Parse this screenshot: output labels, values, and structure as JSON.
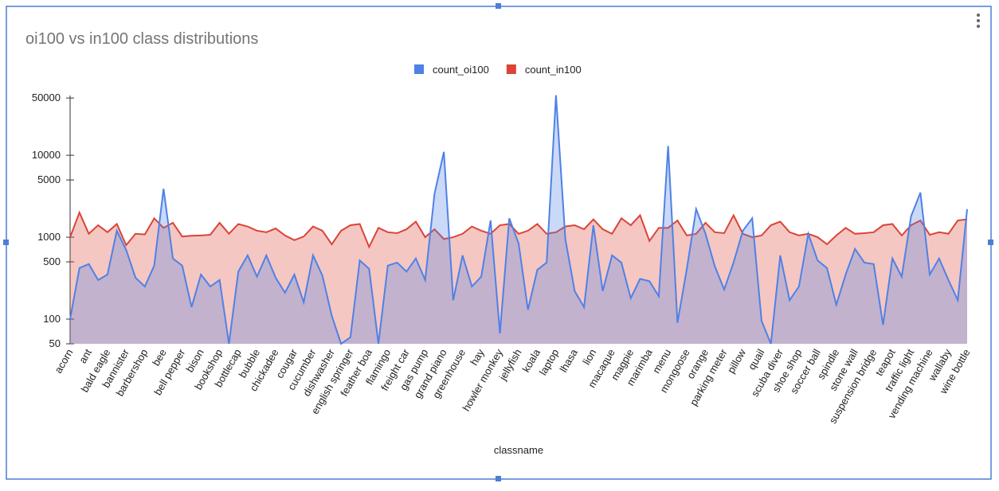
{
  "chart_data": {
    "type": "area",
    "title": "oi100 vs in100 class distributions",
    "x_label": "classname",
    "log_scale": true,
    "grid": false,
    "legend": "top",
    "categories": [
      "acorn",
      null,
      "ant",
      null,
      "bald eagle",
      null,
      "bannister",
      null,
      "barbershop",
      null,
      "bee",
      null,
      "bell pepper",
      null,
      "bison",
      null,
      "bookshop",
      null,
      "bottlecap",
      null,
      "bubble",
      null,
      "chickadee",
      null,
      "cougar",
      null,
      "cucumber",
      null,
      "dishwasher",
      null,
      "english springer",
      null,
      "feather boa",
      null,
      "flamingo",
      null,
      "freight car",
      null,
      "gas pump",
      null,
      "grand piano",
      null,
      "greenhouse",
      null,
      "hay",
      null,
      "howler monkey",
      null,
      "jellyfish",
      null,
      "koala",
      null,
      "laptop",
      null,
      "lhasa",
      null,
      "lion",
      null,
      "macaque",
      null,
      "magpie",
      null,
      "marimba",
      null,
      "menu",
      null,
      "mongoose",
      null,
      "orange",
      null,
      "parking meter",
      null,
      "pillow",
      null,
      "quail",
      null,
      "scuba diver",
      null,
      "shoe shop",
      null,
      "soccer ball",
      null,
      "spindle",
      null,
      "stone wall",
      null,
      "suspension bridge",
      null,
      "teapot",
      null,
      "traffic light",
      null,
      "vending machine",
      null,
      "wallaby",
      null,
      "wine bottle"
    ],
    "series": [
      {
        "name": "count_oi100",
        "color": "#4f81e6",
        "values": [
          100,
          420,
          470,
          300,
          350,
          1200,
          700,
          320,
          250,
          450,
          3900,
          550,
          450,
          140,
          350,
          250,
          300,
          50,
          380,
          600,
          330,
          600,
          320,
          210,
          350,
          160,
          600,
          340,
          110,
          50,
          60,
          520,
          410,
          50,
          450,
          490,
          380,
          550,
          300,
          3400,
          11000,
          170,
          600,
          250,
          330,
          1600,
          67,
          1700,
          840,
          130,
          400,
          490,
          54000,
          950,
          220,
          140,
          1400,
          220,
          600,
          490,
          180,
          310,
          290,
          190,
          13000,
          90,
          410,
          2200,
          1100,
          440,
          230,
          490,
          1200,
          1700,
          95,
          50,
          600,
          170,
          250,
          1100,
          520,
          420,
          150,
          350,
          720,
          490,
          470,
          85,
          550,
          330,
          1800,
          3500,
          350,
          550,
          300,
          170,
          2200
        ]
      },
      {
        "name": "count_in100",
        "color": "#db4437",
        "values": [
          1000,
          2000,
          1100,
          1400,
          1150,
          1450,
          800,
          1100,
          1080,
          1700,
          1300,
          1500,
          1020,
          1040,
          1050,
          1070,
          1500,
          1100,
          1450,
          1350,
          1200,
          1150,
          1280,
          1050,
          920,
          1020,
          1350,
          1200,
          820,
          1200,
          1400,
          1450,
          760,
          1300,
          1150,
          1120,
          1250,
          1550,
          1000,
          1250,
          950,
          1000,
          1100,
          1350,
          1200,
          1100,
          1400,
          1450,
          1100,
          1200,
          1450,
          1100,
          1150,
          1350,
          1400,
          1250,
          1650,
          1250,
          1100,
          1700,
          1400,
          1850,
          900,
          1300,
          1300,
          1600,
          1050,
          1100,
          1500,
          1150,
          1120,
          1850,
          1100,
          1000,
          1050,
          1400,
          1550,
          1150,
          1050,
          1100,
          1000,
          820,
          1050,
          1300,
          1100,
          1120,
          1150,
          1400,
          1450,
          1050,
          1400,
          1600,
          1070,
          1150,
          1100,
          1600,
          1650
        ]
      }
    ],
    "ylim": [
      50,
      60000
    ],
    "yticks": [
      50,
      100,
      500,
      1000,
      5000,
      10000,
      50000
    ]
  }
}
